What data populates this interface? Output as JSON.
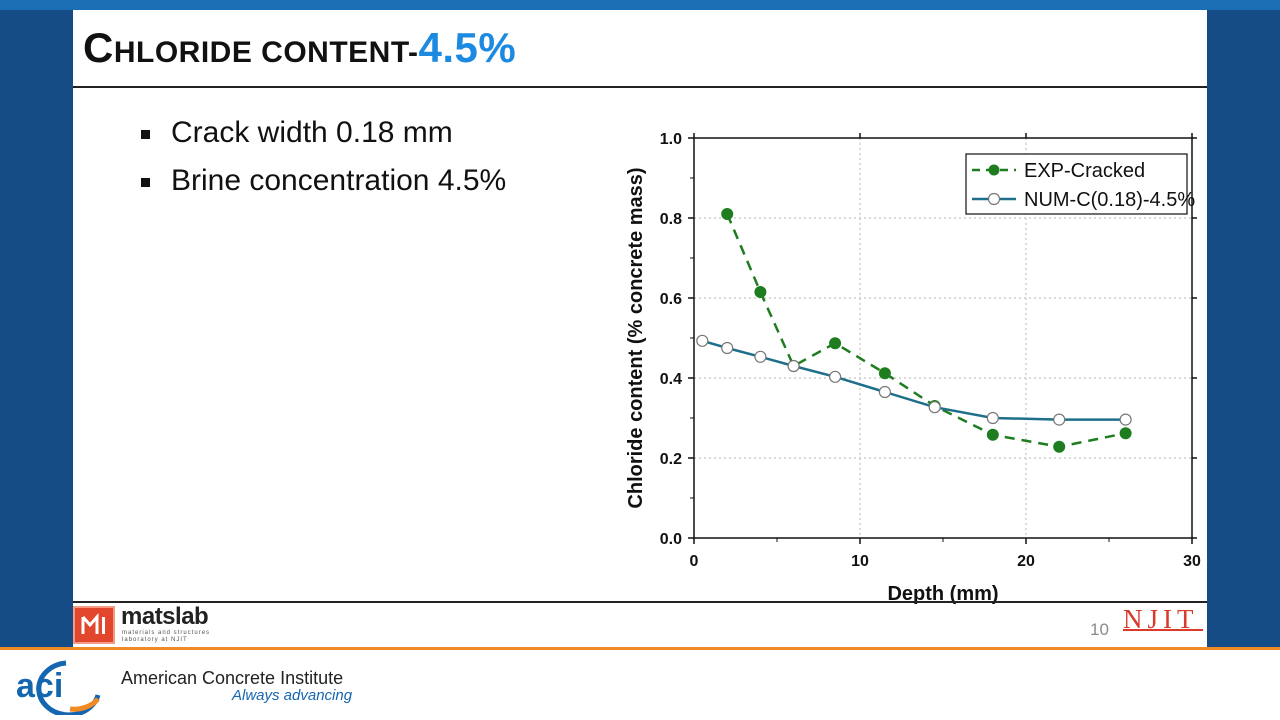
{
  "slide": {
    "title_first_letter": "C",
    "title_rest": "HLORIDE CONTENT-",
    "title_accent": "4.5%",
    "bullets": [
      "Crack width 0.18 mm",
      "Brine concentration 4.5%"
    ],
    "page_number": "10"
  },
  "footer": {
    "lab_name": "matslab",
    "lab_subtitle": "materials and structures laboratory at NJIT",
    "university": "NJIT",
    "org_name": "American Concrete Institute",
    "org_tagline": "Always advancing",
    "org_logo_text": "aci"
  },
  "colors": {
    "frame": "#164c86",
    "accent_blue": "#1b8ae0",
    "exp_series": "#1e7d1e",
    "num_series": "#1f6f8b",
    "orange_rule": "#f08a24"
  },
  "chart_data": {
    "type": "line",
    "xlabel": "Depth (mm)",
    "ylabel": "Chloride content (% concrete mass)",
    "xlim": [
      0,
      30
    ],
    "ylim": [
      0,
      1.0
    ],
    "xticks": [
      0,
      10,
      20,
      30
    ],
    "yticks": [
      0.0,
      0.2,
      0.4,
      0.6,
      0.8,
      1.0
    ],
    "xtick_labels": [
      "0",
      "10",
      "20",
      "30"
    ],
    "ytick_labels": [
      "0.0",
      "0.2",
      "0.4",
      "0.6",
      "0.8",
      "1.0"
    ],
    "grid": true,
    "legend_position": "top-right",
    "series": [
      {
        "name": "EXP-Cracked",
        "style": "dashed",
        "marker": "filled-circle",
        "x": [
          2,
          4,
          6,
          8.5,
          11.5,
          14.5,
          18,
          22,
          26
        ],
        "y": [
          0.81,
          0.615,
          0.43,
          0.487,
          0.412,
          0.33,
          0.258,
          0.228,
          0.262
        ]
      },
      {
        "name": "NUM-C(0.18)-4.5%",
        "style": "solid",
        "marker": "open-circle",
        "x": [
          0.5,
          2,
          4,
          6,
          8.5,
          11.5,
          14.5,
          18,
          22,
          26
        ],
        "y": [
          0.493,
          0.475,
          0.453,
          0.43,
          0.403,
          0.365,
          0.327,
          0.3,
          0.296,
          0.296
        ]
      }
    ]
  }
}
